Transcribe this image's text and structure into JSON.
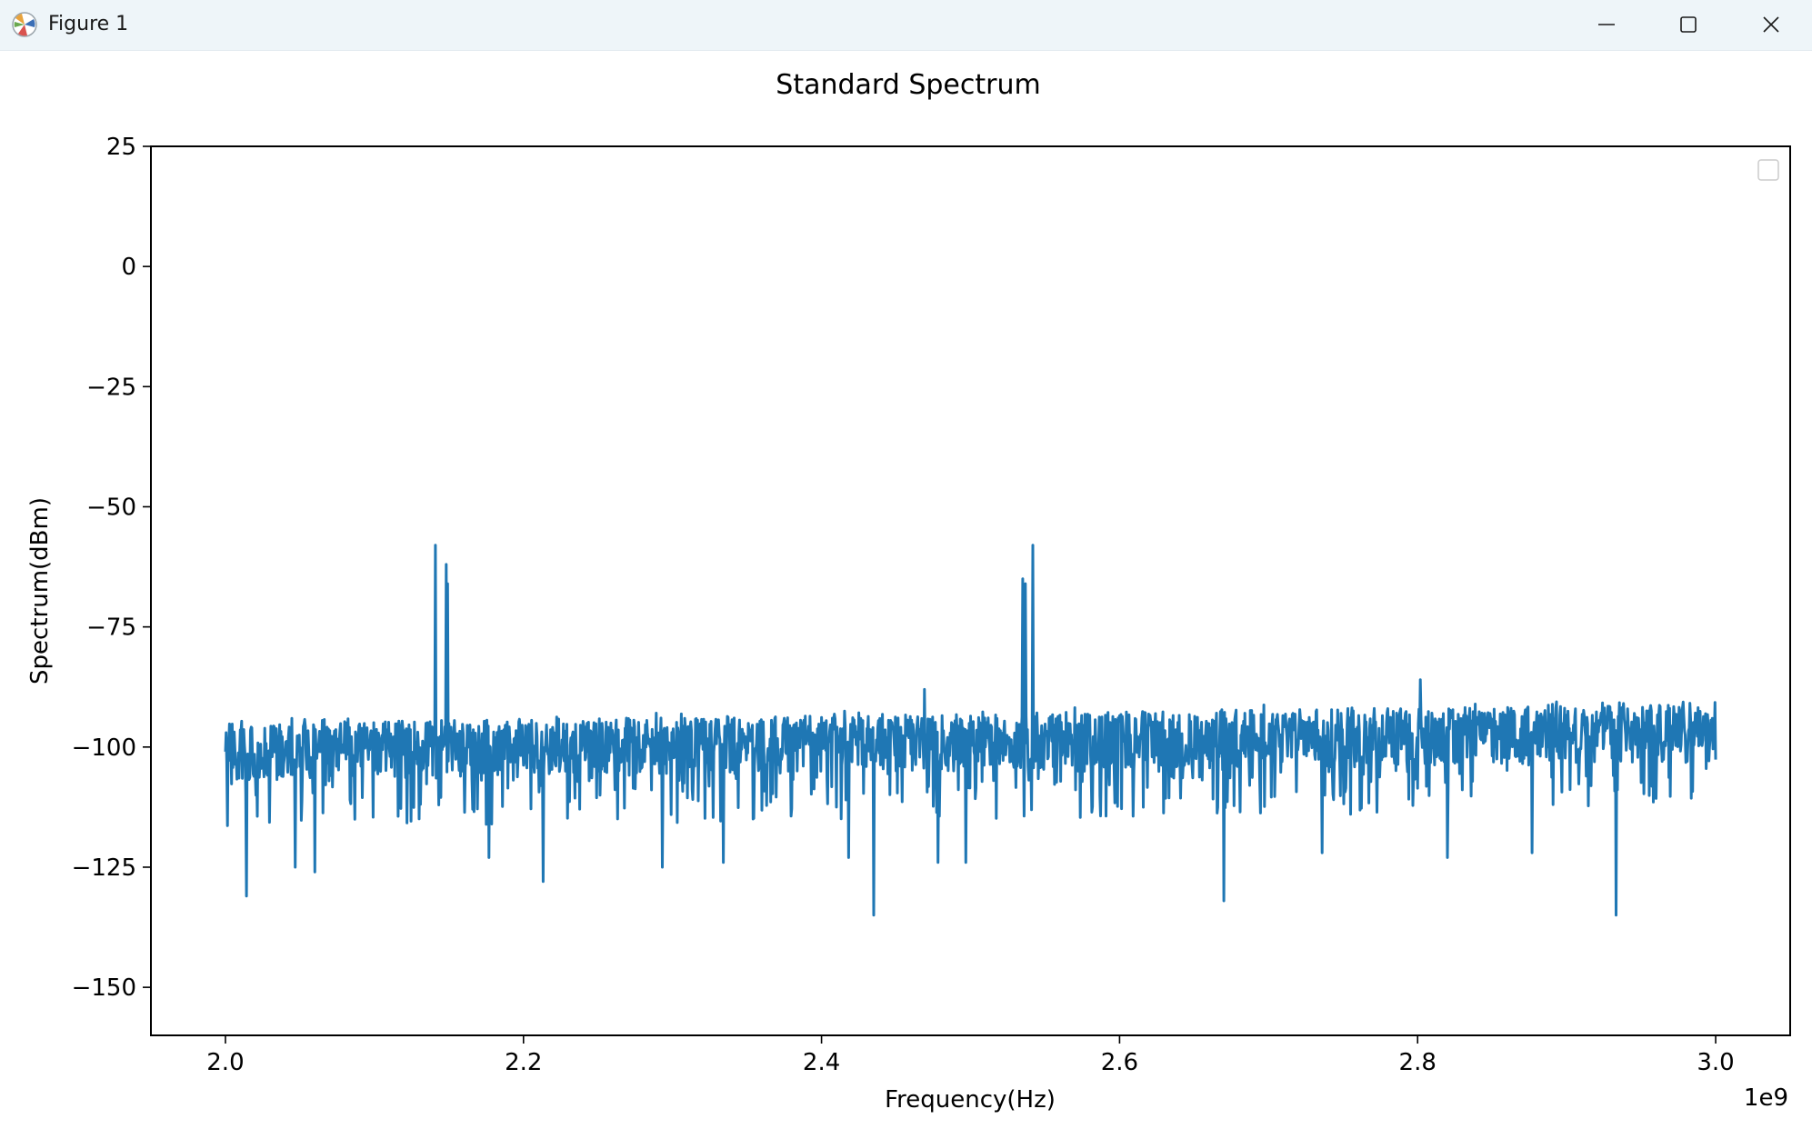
{
  "window": {
    "title": "Figure 1",
    "icons": {
      "app": "matplotlib-icon",
      "minimize": "minimize-icon",
      "maximize": "maximize-icon",
      "close": "close-icon"
    }
  },
  "colors": {
    "line": "#1f77b4",
    "titlebar": "#eef5f9"
  },
  "chart_data": {
    "type": "line",
    "title": "Standard Spectrum",
    "xlabel": "Frequency(Hz)",
    "ylabel": "Spectrum(dBm)",
    "x_offset_label": "1e9",
    "xlim": [
      1.95,
      3.05
    ],
    "ylim": [
      -160,
      25
    ],
    "x_scale_multiplier": "1e9",
    "xticks": [
      "2.0",
      "2.2",
      "2.4",
      "2.6",
      "2.8",
      "3.0"
    ],
    "yticks": [
      "25",
      "0",
      "−25",
      "−50",
      "−75",
      "−100",
      "−125",
      "−150"
    ],
    "legend": {
      "visible": true,
      "entries": [],
      "placement": "top-right"
    },
    "grid": false,
    "series": [
      {
        "noise_floor_dbm": {
          "start": -101,
          "end": -97
        },
        "noise_band_dbm": [
          -108,
          -93
        ],
        "peaks": [
          {
            "x": 2.141,
            "y": -58
          },
          {
            "x": 2.148,
            "y": -62
          },
          {
            "x": 2.149,
            "y": -66
          },
          {
            "x": 2.535,
            "y": -65
          },
          {
            "x": 2.537,
            "y": -66
          },
          {
            "x": 2.542,
            "y": -58
          },
          {
            "x": 2.469,
            "y": -88
          },
          {
            "x": 2.802,
            "y": -86
          }
        ],
        "dips": [
          {
            "x": 2.014,
            "y": -131
          },
          {
            "x": 2.047,
            "y": -125
          },
          {
            "x": 2.06,
            "y": -126
          },
          {
            "x": 2.177,
            "y": -123
          },
          {
            "x": 2.213,
            "y": -128
          },
          {
            "x": 2.293,
            "y": -125
          },
          {
            "x": 2.334,
            "y": -124
          },
          {
            "x": 2.418,
            "y": -123
          },
          {
            "x": 2.435,
            "y": -135
          },
          {
            "x": 2.478,
            "y": -124
          },
          {
            "x": 2.497,
            "y": -124
          },
          {
            "x": 2.67,
            "y": -132
          },
          {
            "x": 2.736,
            "y": -122
          },
          {
            "x": 2.82,
            "y": -123
          },
          {
            "x": 2.877,
            "y": -122
          },
          {
            "x": 2.933,
            "y": -135
          }
        ],
        "x_range": [
          2.0,
          3.0
        ]
      }
    ]
  }
}
